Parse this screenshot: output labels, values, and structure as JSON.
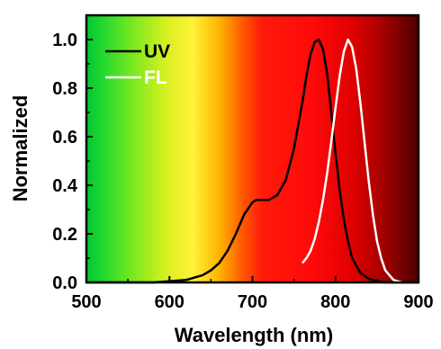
{
  "chart_data": {
    "type": "line",
    "xlabel": "Wavelength (nm)",
    "ylabel": "Normalized",
    "xlim": [
      500,
      900
    ],
    "ylim": [
      0,
      1.1
    ],
    "xticks": [
      500,
      600,
      700,
      800,
      900
    ],
    "xtick_labels": [
      "500",
      "600",
      "700",
      "800",
      "900"
    ],
    "yticks": [
      0.0,
      0.2,
      0.4,
      0.6,
      0.8,
      1.0
    ],
    "ytick_labels": [
      "0.0",
      "0.2",
      "0.4",
      "0.6",
      "0.8",
      "1.0"
    ],
    "grid": false,
    "legend_position": "top-left",
    "background": "spectral gradient (green to red to dark red)",
    "series": [
      {
        "name": "UV",
        "color": "#000000",
        "x": [
          500,
          540,
          580,
          600,
          620,
          640,
          650,
          660,
          670,
          680,
          690,
          700,
          705,
          710,
          720,
          730,
          740,
          750,
          760,
          765,
          770,
          775,
          780,
          785,
          790,
          795,
          800,
          805,
          810,
          815,
          820,
          830,
          840,
          850,
          860,
          870,
          880,
          900
        ],
        "y": [
          0.0,
          0.0,
          0.0,
          0.005,
          0.01,
          0.03,
          0.05,
          0.08,
          0.13,
          0.2,
          0.28,
          0.33,
          0.34,
          0.34,
          0.34,
          0.36,
          0.42,
          0.55,
          0.74,
          0.85,
          0.94,
          0.99,
          1.0,
          0.96,
          0.86,
          0.7,
          0.53,
          0.38,
          0.26,
          0.17,
          0.1,
          0.04,
          0.015,
          0.005,
          0.0,
          0.0,
          0.0,
          0.0
        ]
      },
      {
        "name": "FL",
        "color": "#ffffff",
        "x": [
          760,
          765,
          770,
          775,
          780,
          785,
          790,
          795,
          800,
          805,
          810,
          815,
          820,
          825,
          830,
          835,
          840,
          845,
          850,
          855,
          860,
          870,
          880
        ],
        "y": [
          0.08,
          0.1,
          0.13,
          0.18,
          0.25,
          0.34,
          0.45,
          0.58,
          0.72,
          0.85,
          0.95,
          1.0,
          0.97,
          0.88,
          0.74,
          0.58,
          0.42,
          0.28,
          0.17,
          0.1,
          0.05,
          0.01,
          0.0
        ]
      }
    ]
  }
}
